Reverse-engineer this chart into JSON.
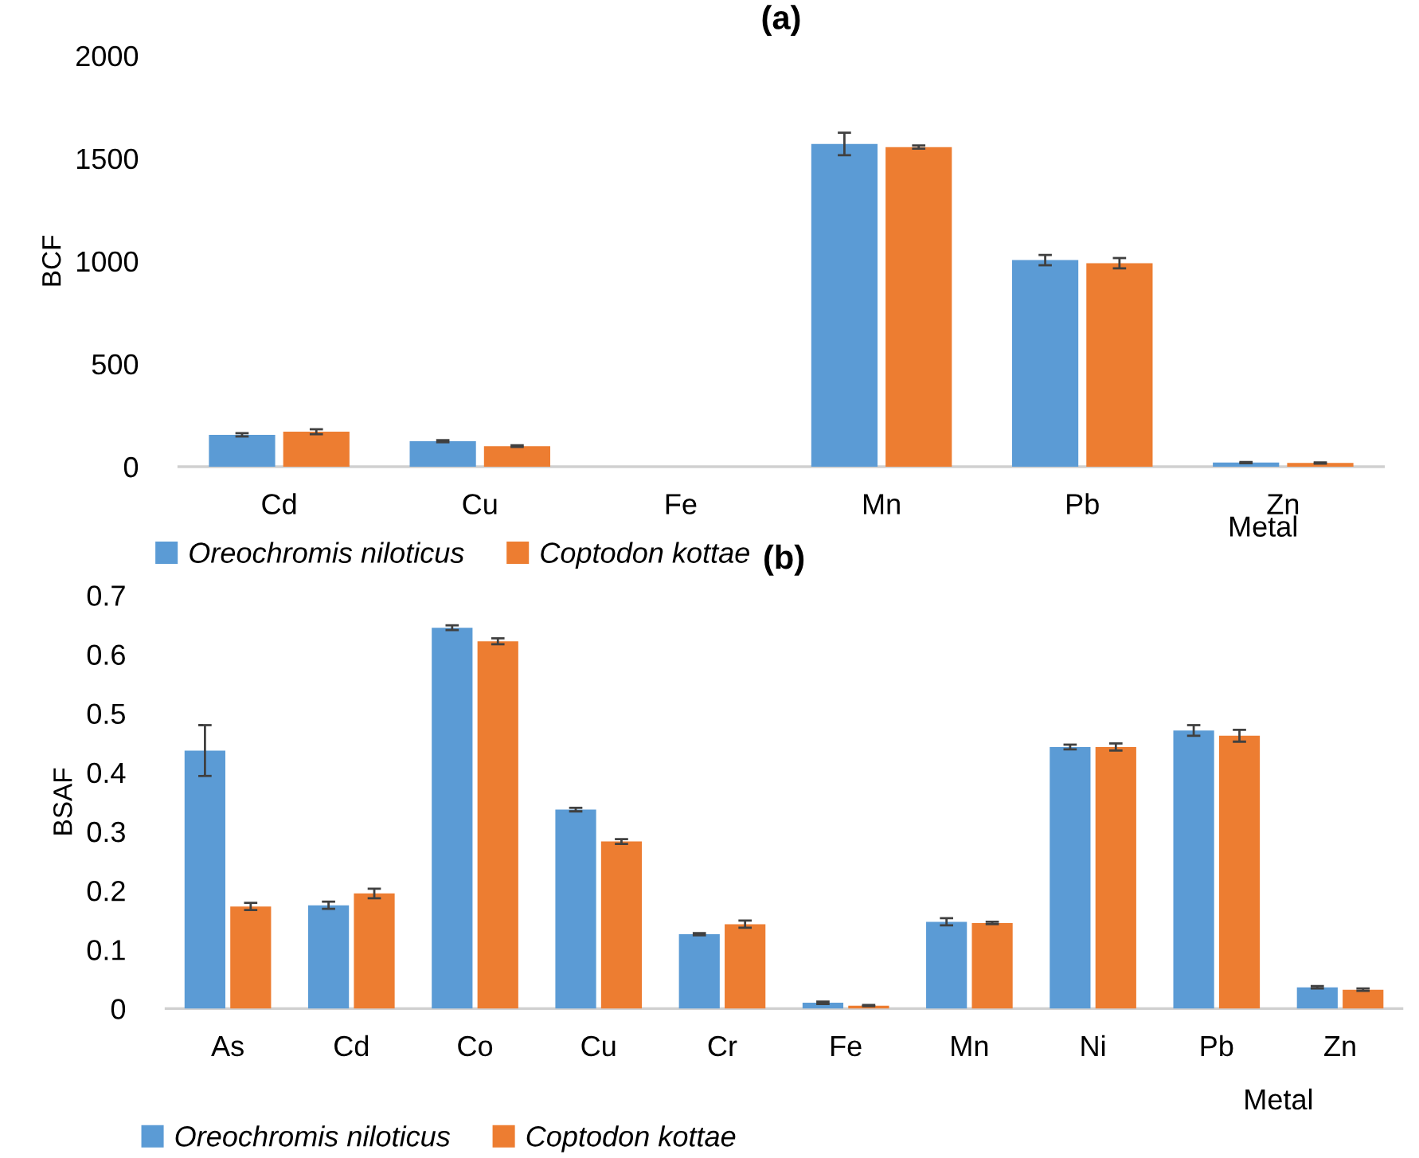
{
  "chart_data": [
    {
      "type": "bar",
      "title": "(a)",
      "xlabel": "Metal",
      "ylabel": "BCF",
      "categories": [
        "Cd",
        "Cu",
        "Fe",
        "Mn",
        "Pb",
        "Zn"
      ],
      "series": [
        {
          "name": "Oreochromis niloticus",
          "color": "#5b9bd5",
          "values": [
            155,
            124,
            null,
            1570,
            1005,
            20
          ],
          "errors": [
            8,
            5,
            null,
            55,
            25,
            3
          ]
        },
        {
          "name": "Coptodon kottae",
          "color": "#ed7d31",
          "values": [
            170,
            100,
            null,
            1555,
            990,
            18
          ],
          "errors": [
            12,
            4,
            null,
            8,
            25,
            3
          ]
        }
      ],
      "ylim": [
        0,
        2000
      ],
      "yticks": [
        0,
        500,
        1000,
        1500,
        2000
      ],
      "grid": false,
      "legend": "bottom left"
    },
    {
      "type": "bar",
      "title": "(b)",
      "xlabel": "Metal",
      "ylabel": "BSAF",
      "categories": [
        "As",
        "Cd",
        "Co",
        "Cu",
        "Cr",
        "Fe",
        "Mn",
        "Ni",
        "Pb",
        "Zn"
      ],
      "series": [
        {
          "name": "Oreochromis niloticus",
          "color": "#5b9bd5",
          "values": [
            0.437,
            0.175,
            0.645,
            0.337,
            0.126,
            0.01,
            0.147,
            0.443,
            0.471,
            0.036
          ],
          "errors": [
            0.043,
            0.006,
            0.004,
            0.003,
            0.002,
            0.002,
            0.006,
            0.004,
            0.009,
            0.002
          ]
        },
        {
          "name": "Coptodon kottae",
          "color": "#ed7d31",
          "values": [
            0.173,
            0.195,
            0.622,
            0.283,
            0.143,
            0.005,
            0.145,
            0.443,
            0.462,
            0.032
          ],
          "errors": [
            0.006,
            0.008,
            0.005,
            0.004,
            0.006,
            0.001,
            0.002,
            0.006,
            0.01,
            0.002
          ]
        }
      ],
      "ylim": [
        0,
        0.7
      ],
      "yticks": [
        0,
        0.1,
        0.2,
        0.3,
        0.4,
        0.5,
        0.6,
        0.7
      ],
      "grid": false,
      "legend": "bottom left"
    }
  ]
}
